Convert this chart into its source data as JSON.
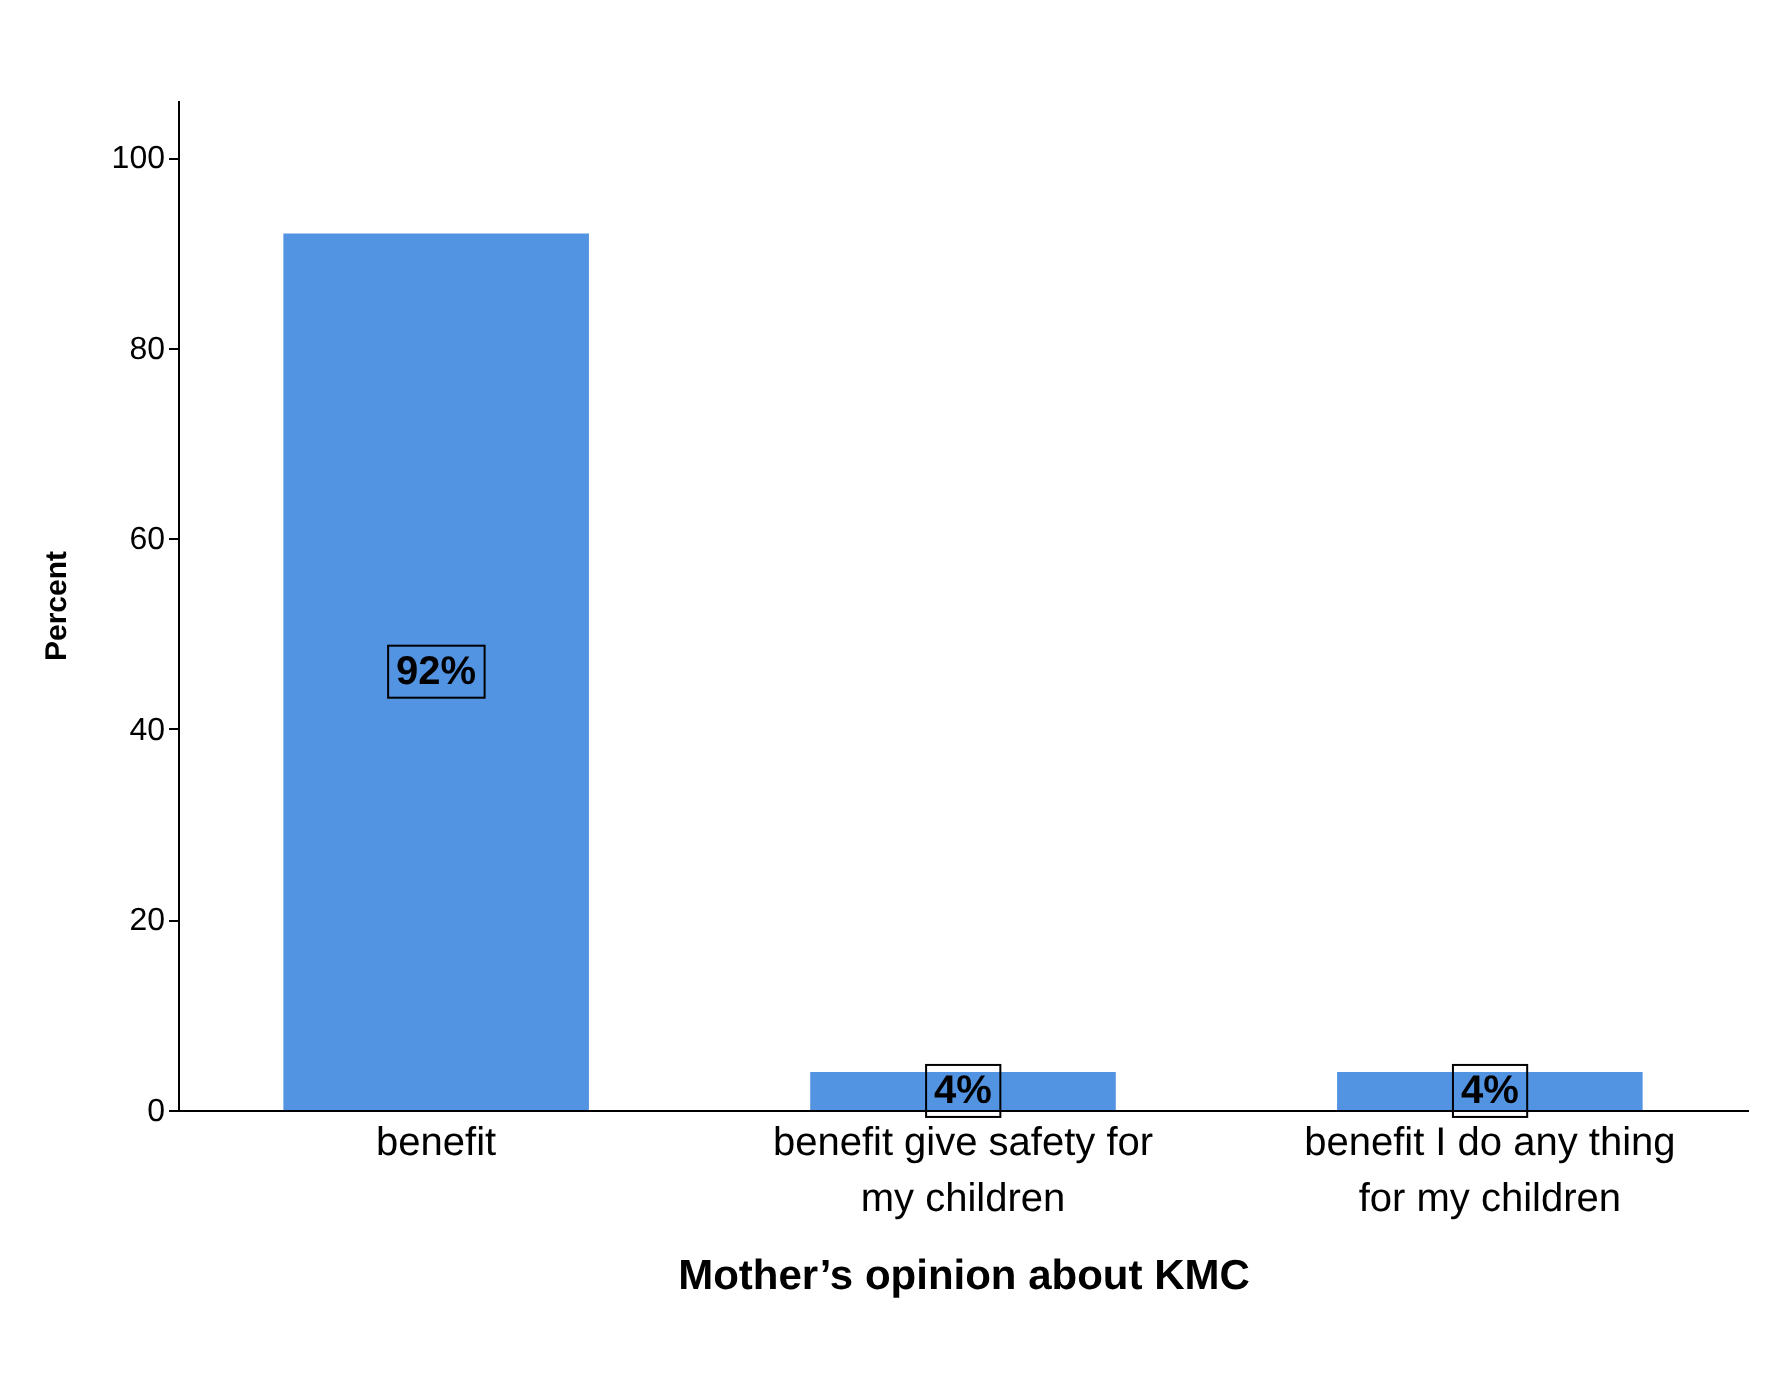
{
  "chart_data": {
    "type": "bar",
    "categories": [
      "benefit",
      "benefit give safety for my children",
      "benefit I do any thing for my children"
    ],
    "values": [
      92,
      4,
      4
    ],
    "value_labels": [
      "92%",
      "4%",
      "4%"
    ],
    "color": "#5294e2",
    "xlabel": "Mother’s opinion about KMC",
    "ylabel": "Percent",
    "ylim": [
      0,
      106
    ],
    "yticks": [
      0,
      20,
      40,
      60,
      80,
      100
    ],
    "grid": false
  }
}
